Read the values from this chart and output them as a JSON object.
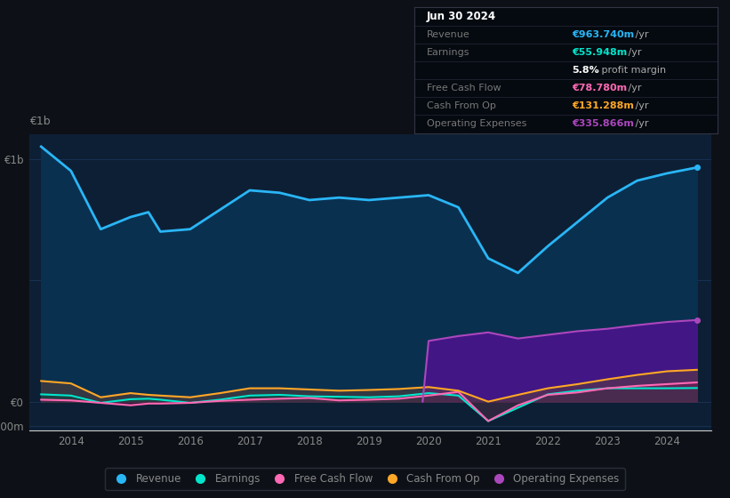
{
  "bg_color": "#0d1117",
  "plot_bg_color": "#0d1f35",
  "grid_color": "#1e3a5f",
  "text_color": "#888888",
  "years_x": [
    2013.5,
    2014.0,
    2014.5,
    2015.0,
    2015.3,
    2015.5,
    2016.0,
    2016.5,
    2017.0,
    2017.5,
    2018.0,
    2018.5,
    2019.0,
    2019.5,
    2020.0,
    2020.5,
    2021.0,
    2021.5,
    2022.0,
    2022.5,
    2023.0,
    2023.5,
    2024.0,
    2024.5
  ],
  "revenue": [
    1050,
    950,
    710,
    760,
    780,
    700,
    710,
    790,
    870,
    860,
    830,
    840,
    830,
    840,
    850,
    800,
    590,
    530,
    640,
    740,
    840,
    910,
    940,
    964
  ],
  "earnings": [
    30,
    25,
    -5,
    10,
    12,
    8,
    -5,
    8,
    25,
    28,
    22,
    20,
    18,
    22,
    35,
    25,
    -80,
    -25,
    30,
    45,
    55,
    55,
    55,
    56
  ],
  "free_cash_flow": [
    8,
    5,
    -5,
    -15,
    -8,
    -8,
    -5,
    3,
    8,
    12,
    15,
    5,
    8,
    12,
    25,
    40,
    -80,
    -15,
    28,
    38,
    55,
    65,
    72,
    79
  ],
  "cash_from_op": [
    85,
    75,
    18,
    35,
    28,
    25,
    18,
    35,
    55,
    55,
    50,
    45,
    48,
    52,
    60,
    45,
    0,
    28,
    55,
    72,
    92,
    110,
    125,
    131
  ],
  "op_expenses_x": [
    2019.9,
    2020.0,
    2020.5,
    2021.0,
    2021.5,
    2022.0,
    2022.5,
    2023.0,
    2023.5,
    2024.0,
    2024.5
  ],
  "op_expenses": [
    0,
    250,
    270,
    285,
    260,
    275,
    290,
    300,
    315,
    328,
    336
  ],
  "ylim": [
    -120,
    1100
  ],
  "xlim": [
    2013.3,
    2024.75
  ],
  "xticks": [
    2014,
    2015,
    2016,
    2017,
    2018,
    2019,
    2020,
    2021,
    2022,
    2023,
    2024
  ],
  "revenue_color": "#29b6f6",
  "revenue_fill": "#0a3050",
  "earnings_color": "#00e5cc",
  "free_cash_flow_color": "#ff69b4",
  "cash_from_op_color": "#ffa726",
  "op_expenses_color": "#ab47bc",
  "op_expenses_fill": "#4a148c",
  "legend_items": [
    "Revenue",
    "Earnings",
    "Free Cash Flow",
    "Cash From Op",
    "Operating Expenses"
  ],
  "legend_colors": [
    "#29b6f6",
    "#00e5cc",
    "#ff69b4",
    "#ffa726",
    "#ab47bc"
  ],
  "tooltip": {
    "date": "Jun 30 2024",
    "rows": [
      {
        "label": "Revenue",
        "value": "€963.740m",
        "suffix": " /yr",
        "color": "#29b6f6",
        "indent": false
      },
      {
        "label": "Earnings",
        "value": "€55.948m",
        "suffix": " /yr",
        "color": "#00e5cc",
        "indent": false
      },
      {
        "label": "",
        "value": "5.8%",
        "suffix": " profit margin",
        "color": "#ffffff",
        "indent": true
      },
      {
        "label": "Free Cash Flow",
        "value": "€78.780m",
        "suffix": " /yr",
        "color": "#ff69b4",
        "indent": false
      },
      {
        "label": "Cash From Op",
        "value": "€131.288m",
        "suffix": " /yr",
        "color": "#ffa726",
        "indent": false
      },
      {
        "label": "Operating Expenses",
        "value": "€335.866m",
        "suffix": " /yr",
        "color": "#ab47bc",
        "indent": false
      }
    ]
  }
}
